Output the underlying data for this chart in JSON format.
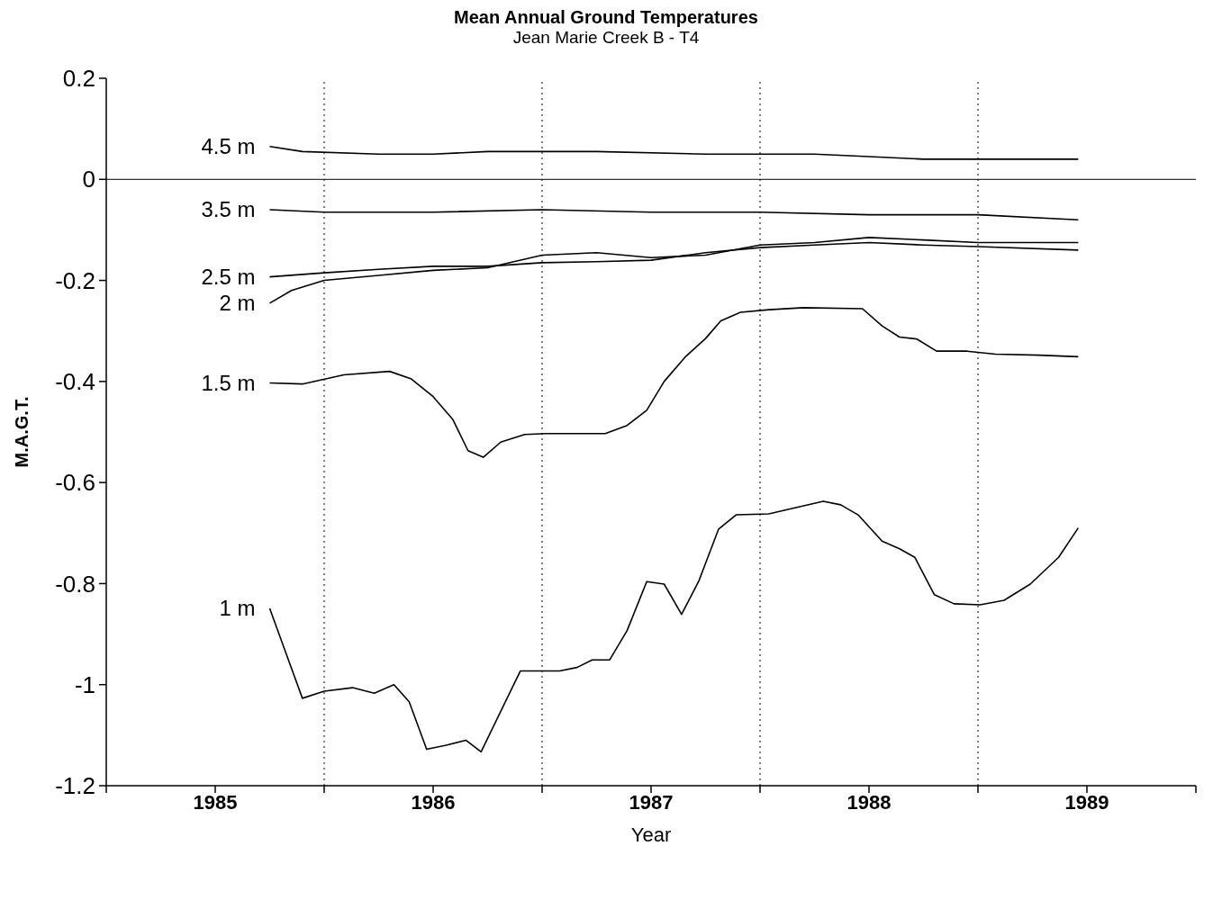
{
  "chart_data": {
    "type": "line",
    "title": "Mean Annual Ground Temperatures",
    "subtitle": "Jean Marie Creek B - T4",
    "xlabel": "Year",
    "ylabel": "M.A.G.T.",
    "xlim": [
      1985,
      1990
    ],
    "xticks": [
      {
        "value": 1985,
        "label": null
      },
      {
        "value": 1985.5,
        "label": "1985"
      },
      {
        "value": 1986,
        "label": null
      },
      {
        "value": 1986.5,
        "label": "1986"
      },
      {
        "value": 1987,
        "label": null
      },
      {
        "value": 1987.5,
        "label": "1987"
      },
      {
        "value": 1988,
        "label": null
      },
      {
        "value": 1988.5,
        "label": "1988"
      },
      {
        "value": 1989,
        "label": null
      },
      {
        "value": 1989.5,
        "label": "1989"
      },
      {
        "value": 1990,
        "label": null
      }
    ],
    "ylim": [
      -1.2,
      0.2
    ],
    "yticks": [
      0.2,
      0,
      -0.2,
      -0.4,
      -0.6,
      -0.8,
      -1,
      -1.2
    ],
    "grid": false,
    "legend": false,
    "marker": "none",
    "line_style": "solid",
    "ref_lines": [
      {
        "axis": "y",
        "value": 0,
        "line_style": "solid",
        "color": "#000000"
      },
      {
        "axis": "x",
        "value": 1986,
        "line_style": "dotted",
        "color": "#000000"
      },
      {
        "axis": "x",
        "value": 1987,
        "line_style": "dotted",
        "color": "#000000"
      },
      {
        "axis": "x",
        "value": 1988,
        "line_style": "dotted",
        "color": "#000000"
      },
      {
        "axis": "x",
        "value": 1989,
        "line_style": "dotted",
        "color": "#000000"
      }
    ],
    "series": [
      {
        "name": "4.5 m",
        "color": "#000000",
        "x": [
          1985.75,
          1985.9,
          1986.25,
          1986.5,
          1986.75,
          1987.25,
          1987.75,
          1988.25,
          1988.5,
          1988.75,
          1989.46
        ],
        "values": [
          0.065,
          0.055,
          0.05,
          0.05,
          0.055,
          0.055,
          0.05,
          0.05,
          0.045,
          0.04,
          0.04
        ]
      },
      {
        "name": "3.5 m",
        "color": "#000000",
        "x": [
          1985.75,
          1986,
          1986.5,
          1987,
          1987.5,
          1988,
          1988.5,
          1989,
          1989.46
        ],
        "values": [
          -0.06,
          -0.065,
          -0.065,
          -0.06,
          -0.065,
          -0.065,
          -0.07,
          -0.07,
          -0.08
        ]
      },
      {
        "name": "2.5 m",
        "color": "#000000",
        "x": [
          1985.75,
          1986,
          1986.25,
          1986.5,
          1986.75,
          1987,
          1987.25,
          1987.5,
          1987.75,
          1988,
          1988.25,
          1988.5,
          1988.75,
          1989,
          1989.46
        ],
        "values": [
          -0.193,
          -0.185,
          -0.178,
          -0.172,
          -0.172,
          -0.165,
          -0.163,
          -0.16,
          -0.145,
          -0.135,
          -0.13,
          -0.125,
          -0.13,
          -0.133,
          -0.14
        ]
      },
      {
        "name": "2 m",
        "color": "#000000",
        "x": [
          1985.75,
          1985.85,
          1986,
          1986.25,
          1986.5,
          1986.75,
          1987,
          1987.25,
          1987.5,
          1987.75,
          1988,
          1988.25,
          1988.5,
          1988.75,
          1989,
          1989.46
        ],
        "values": [
          -0.245,
          -0.22,
          -0.2,
          -0.19,
          -0.18,
          -0.175,
          -0.15,
          -0.145,
          -0.155,
          -0.15,
          -0.13,
          -0.125,
          -0.115,
          -0.12,
          -0.125,
          -0.125
        ]
      },
      {
        "name": "1.5 m",
        "color": "#000000",
        "x": [
          1985.75,
          1985.9,
          1986.09,
          1986.3,
          1986.4,
          1986.5,
          1986.59,
          1986.66,
          1986.73,
          1986.81,
          1986.92,
          1987.02,
          1987.29,
          1987.39,
          1987.48,
          1987.56,
          1987.66,
          1987.75,
          1987.82,
          1987.91,
          1988.04,
          1988.2,
          1988.47,
          1988.56,
          1988.64,
          1988.72,
          1988.81,
          1988.95,
          1989.08,
          1989.28,
          1989.46
        ],
        "values": [
          -0.403,
          -0.405,
          -0.387,
          -0.38,
          -0.395,
          -0.43,
          -0.475,
          -0.537,
          -0.55,
          -0.52,
          -0.505,
          -0.503,
          -0.503,
          -0.487,
          -0.457,
          -0.4,
          -0.35,
          -0.315,
          -0.28,
          -0.263,
          -0.258,
          -0.254,
          -0.256,
          -0.29,
          -0.312,
          -0.316,
          -0.34,
          -0.34,
          -0.346,
          -0.348,
          -0.351
        ]
      },
      {
        "name": "1 m",
        "color": "#000000",
        "x": [
          1985.75,
          1985.9,
          1986,
          1986.13,
          1986.23,
          1986.32,
          1986.39,
          1986.47,
          1986.56,
          1986.65,
          1986.72,
          1986.9,
          1987.08,
          1987.16,
          1987.23,
          1987.31,
          1987.39,
          1987.48,
          1987.56,
          1987.64,
          1987.72,
          1987.81,
          1987.89,
          1988.04,
          1988.16,
          1988.29,
          1988.37,
          1988.45,
          1988.56,
          1988.64,
          1988.71,
          1988.8,
          1988.89,
          1989.01,
          1989.12,
          1989.24,
          1989.37,
          1989.46
        ],
        "values": [
          -0.849,
          -1.027,
          -1.013,
          -1.006,
          -1.017,
          -1,
          -1.034,
          -1.128,
          -1.12,
          -1.11,
          -1.133,
          -0.973,
          -0.973,
          -0.966,
          -0.951,
          -0.951,
          -0.893,
          -0.796,
          -0.801,
          -0.861,
          -0.794,
          -0.692,
          -0.664,
          -0.662,
          -0.65,
          -0.637,
          -0.644,
          -0.664,
          -0.716,
          -0.731,
          -0.748,
          -0.822,
          -0.84,
          -0.842,
          -0.833,
          -0.801,
          -0.748,
          -0.69
        ]
      }
    ]
  }
}
